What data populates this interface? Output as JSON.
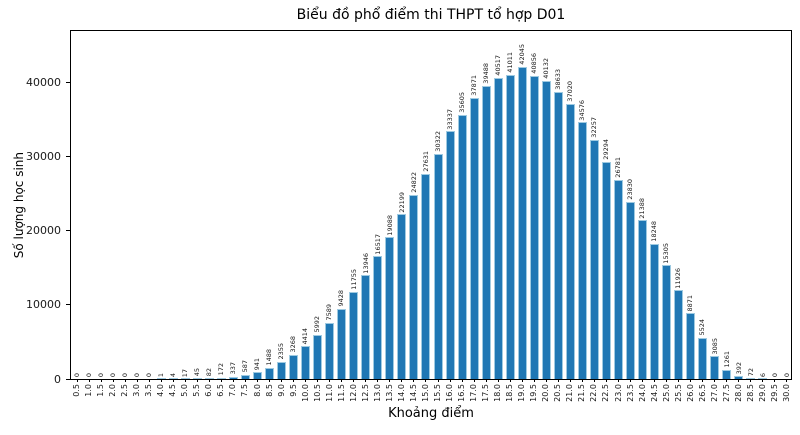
{
  "chart_data": {
    "type": "bar",
    "title": "Biểu đồ phổ điểm thi THPT tổ hợp D01",
    "xlabel": "Khoảng điểm",
    "ylabel": "Số lượng học sinh",
    "legend": null,
    "grid": false,
    "bar_color": "#1f77b4",
    "bar_edge_color": "#9ecae1",
    "ylim": [
      0,
      47100
    ],
    "yticks": [
      0,
      10000,
      20000,
      30000,
      40000
    ],
    "categories": [
      "0.5",
      "1.0",
      "1.5",
      "2.0",
      "2.5",
      "3.0",
      "3.5",
      "4.0",
      "4.5",
      "5.0",
      "5.5",
      "6.0",
      "6.5",
      "7.0",
      "7.5",
      "8.0",
      "8.5",
      "9.0",
      "9.5",
      "10.0",
      "10.5",
      "11.0",
      "11.5",
      "12.0",
      "12.5",
      "13.0",
      "13.5",
      "14.0",
      "14.5",
      "15.0",
      "15.5",
      "16.0",
      "16.5",
      "17.0",
      "17.5",
      "18.0",
      "18.5",
      "19.0",
      "19.5",
      "20.0",
      "20.5",
      "21.0",
      "21.5",
      "22.0",
      "22.5",
      "23.0",
      "23.5",
      "24.0",
      "24.5",
      "25.0",
      "25.5",
      "26.0",
      "26.5",
      "27.0",
      "27.5",
      "28.0",
      "28.5",
      "29.0",
      "29.5",
      "30.0"
    ],
    "values": [
      0,
      0,
      0,
      0,
      0,
      0,
      0,
      1,
      4,
      17,
      45,
      82,
      172,
      337,
      587,
      941,
      1488,
      2355,
      3268,
      4414,
      5992,
      7589,
      9428,
      11755,
      13946,
      16517,
      19088,
      22199,
      24822,
      27631,
      30322,
      33337,
      35605,
      37871,
      39488,
      40517,
      41011,
      42045,
      40856,
      40132,
      38633,
      37020,
      34576,
      32257,
      29294,
      26781,
      23830,
      21388,
      18248,
      15305,
      11926,
      8871,
      5524,
      3085,
      1261,
      392,
      72,
      6,
      0,
      0
    ]
  }
}
